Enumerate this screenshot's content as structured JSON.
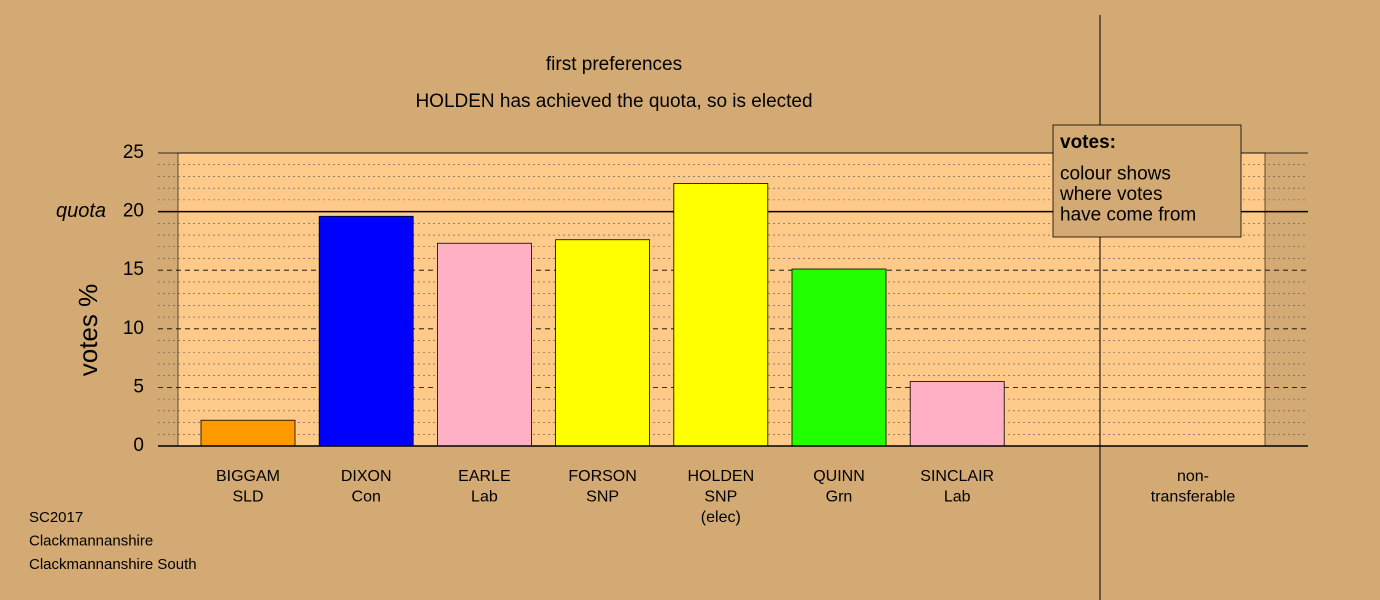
{
  "chart_data": {
    "type": "bar",
    "title": "first preferences",
    "subtitle": "HOLDEN has achieved the quota, so is elected",
    "y_label": "votes %",
    "categories": [
      [
        "BIGGAM",
        "SLD"
      ],
      [
        "DIXON",
        "Con"
      ],
      [
        "EARLE",
        "Lab"
      ],
      [
        "FORSON",
        "SNP"
      ],
      [
        "HOLDEN",
        "SNP",
        "(elec)"
      ],
      [
        "QUINN",
        "Grn"
      ],
      [
        "SINCLAIR",
        "Lab"
      ]
    ],
    "values": [
      2.2,
      19.6,
      17.3,
      17.6,
      22.4,
      15.1,
      5.5
    ],
    "colors": [
      "#ff9900",
      "#0000ff",
      "#ffb0c4",
      "#ffff00",
      "#ffff00",
      "#22ff00",
      "#ffb0c4"
    ],
    "extra_column": [
      "non-",
      "transferable"
    ],
    "ylim": [
      0,
      25
    ],
    "yticks": [
      0,
      5,
      10,
      15,
      20,
      25
    ],
    "minor_yticks": [
      1,
      2,
      3,
      4,
      6,
      7,
      8,
      9,
      11,
      12,
      13,
      14,
      16,
      17,
      18,
      19,
      21,
      22,
      23,
      24
    ],
    "quota": 20,
    "quota_label": "quota",
    "grid": true,
    "legend_box": [
      "votes:",
      "colour shows",
      "where votes",
      "have come from"
    ],
    "footer": [
      "SC2017",
      "Clackmannanshire",
      "Clackmannanshire South"
    ]
  }
}
